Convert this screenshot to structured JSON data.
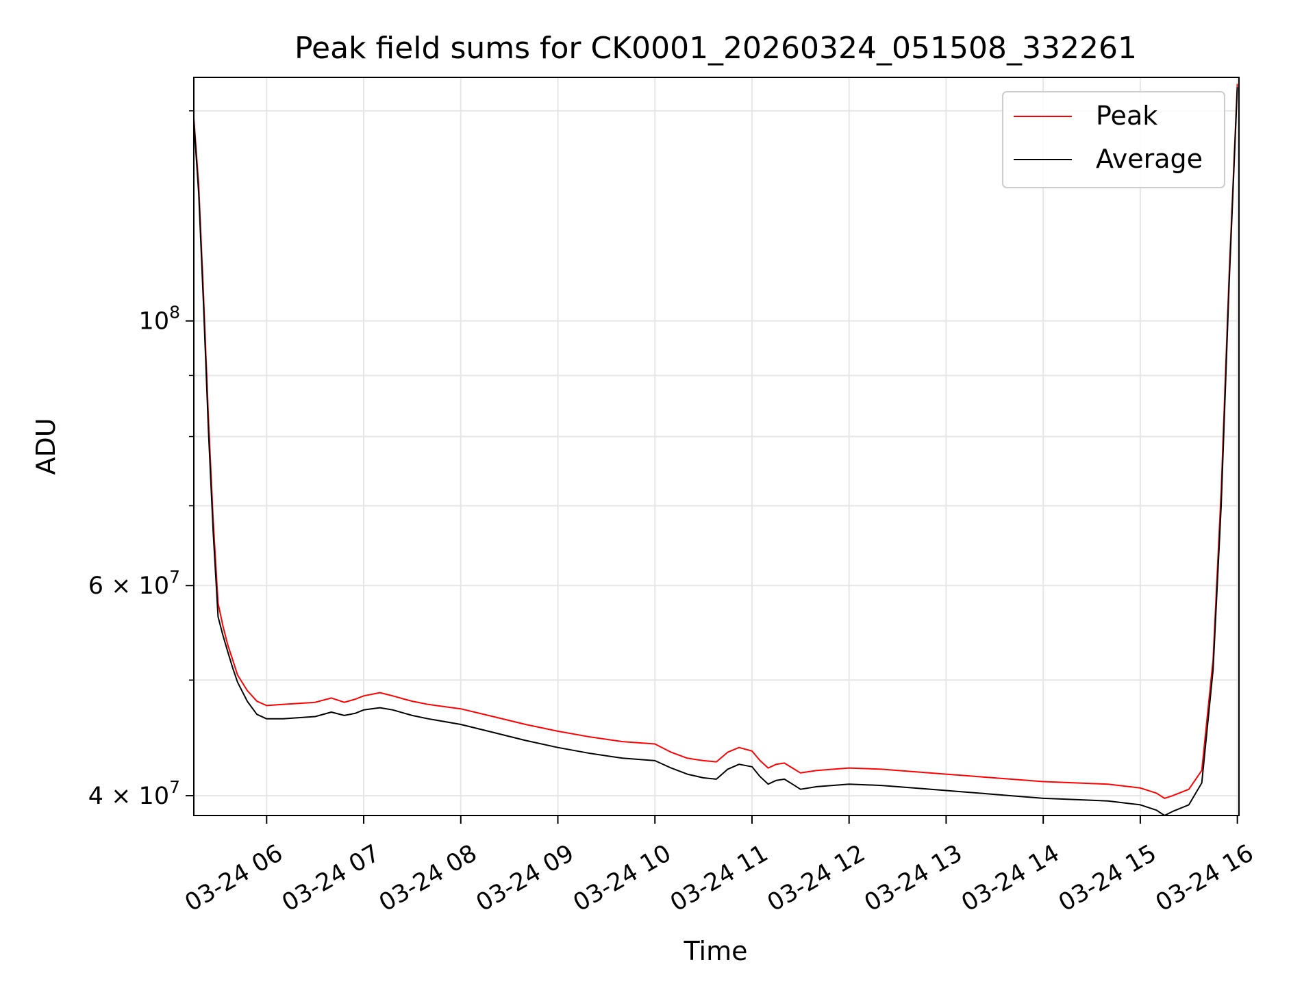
{
  "chart_data": {
    "type": "line",
    "title": "Peak field sums for CK0001_20260324_051508_332261",
    "xlabel": "Time",
    "ylabel": "ADU",
    "y_scale": "log",
    "grid": true,
    "legend_placement": "top-right",
    "xlim": [
      "03-24 05:15",
      "03-24 16:01"
    ],
    "ylim": [
      38500000,
      160000000
    ],
    "x_ticks": [
      "03-24 06",
      "03-24 07",
      "03-24 08",
      "03-24 09",
      "03-24 10",
      "03-24 11",
      "03-24 12",
      "03-24 13",
      "03-24 14",
      "03-24 15",
      "03-24 16"
    ],
    "y_ticks": [
      {
        "value": 40000000,
        "label": "4 × 10",
        "exp": "7"
      },
      {
        "value": 60000000,
        "label": "6 × 10",
        "exp": "7"
      },
      {
        "value": 100000000,
        "label": "10",
        "exp": "8"
      }
    ],
    "x": [
      "05:15",
      "05:18",
      "05:21",
      "05:24",
      "05:27",
      "05:30",
      "05:33",
      "05:36",
      "05:39",
      "05:42",
      "05:48",
      "05:54",
      "06:00",
      "06:10",
      "06:20",
      "06:30",
      "06:40",
      "06:48",
      "06:55",
      "07:00",
      "07:10",
      "07:18",
      "07:25",
      "07:30",
      "07:40",
      "08:00",
      "08:20",
      "08:40",
      "09:00",
      "09:20",
      "09:40",
      "10:00",
      "10:10",
      "10:20",
      "10:30",
      "10:38",
      "10:45",
      "10:52",
      "11:00",
      "11:05",
      "11:10",
      "11:15",
      "11:20",
      "11:25",
      "11:30",
      "11:40",
      "12:00",
      "12:20",
      "12:40",
      "13:00",
      "13:20",
      "13:40",
      "14:00",
      "14:20",
      "14:40",
      "15:00",
      "15:10",
      "15:15",
      "15:20",
      "15:30",
      "15:38",
      "15:45",
      "15:50",
      "15:55",
      "16:00"
    ],
    "series": [
      {
        "name": "Peak",
        "color": "#ff0000",
        "values": [
          148000000,
          130000000,
          105000000,
          83000000,
          68000000,
          58000000,
          55500000,
          53500000,
          52000000,
          50500000,
          49000000,
          48000000,
          47600000,
          47700000,
          47800000,
          47900000,
          48300000,
          47900000,
          48200000,
          48500000,
          48800000,
          48500000,
          48200000,
          48000000,
          47700000,
          47300000,
          46600000,
          45900000,
          45300000,
          44800000,
          44400000,
          44200000,
          43500000,
          43000000,
          42800000,
          42700000,
          43500000,
          43900000,
          43600000,
          42800000,
          42200000,
          42500000,
          42600000,
          42200000,
          41800000,
          42000000,
          42200000,
          42100000,
          41900000,
          41700000,
          41500000,
          41300000,
          41100000,
          41000000,
          40900000,
          40600000,
          40200000,
          39800000,
          40000000,
          40500000,
          42000000,
          52000000,
          72000000,
          110000000,
          158000000
        ]
      },
      {
        "name": "Average",
        "color": "#000000",
        "values": [
          147000000,
          128000000,
          103000000,
          81000000,
          66500000,
          56500000,
          54500000,
          52800000,
          51200000,
          49800000,
          48000000,
          46800000,
          46400000,
          46400000,
          46500000,
          46600000,
          47000000,
          46700000,
          46900000,
          47200000,
          47400000,
          47200000,
          46900000,
          46700000,
          46400000,
          45900000,
          45200000,
          44500000,
          43900000,
          43400000,
          43000000,
          42800000,
          42200000,
          41700000,
          41400000,
          41300000,
          42100000,
          42500000,
          42300000,
          41500000,
          40900000,
          41200000,
          41300000,
          40900000,
          40500000,
          40700000,
          40900000,
          40800000,
          40600000,
          40400000,
          40200000,
          40000000,
          39800000,
          39700000,
          39600000,
          39300000,
          38900000,
          38500000,
          38800000,
          39300000,
          41000000,
          51000000,
          70000000,
          108000000,
          157000000
        ]
      }
    ]
  }
}
